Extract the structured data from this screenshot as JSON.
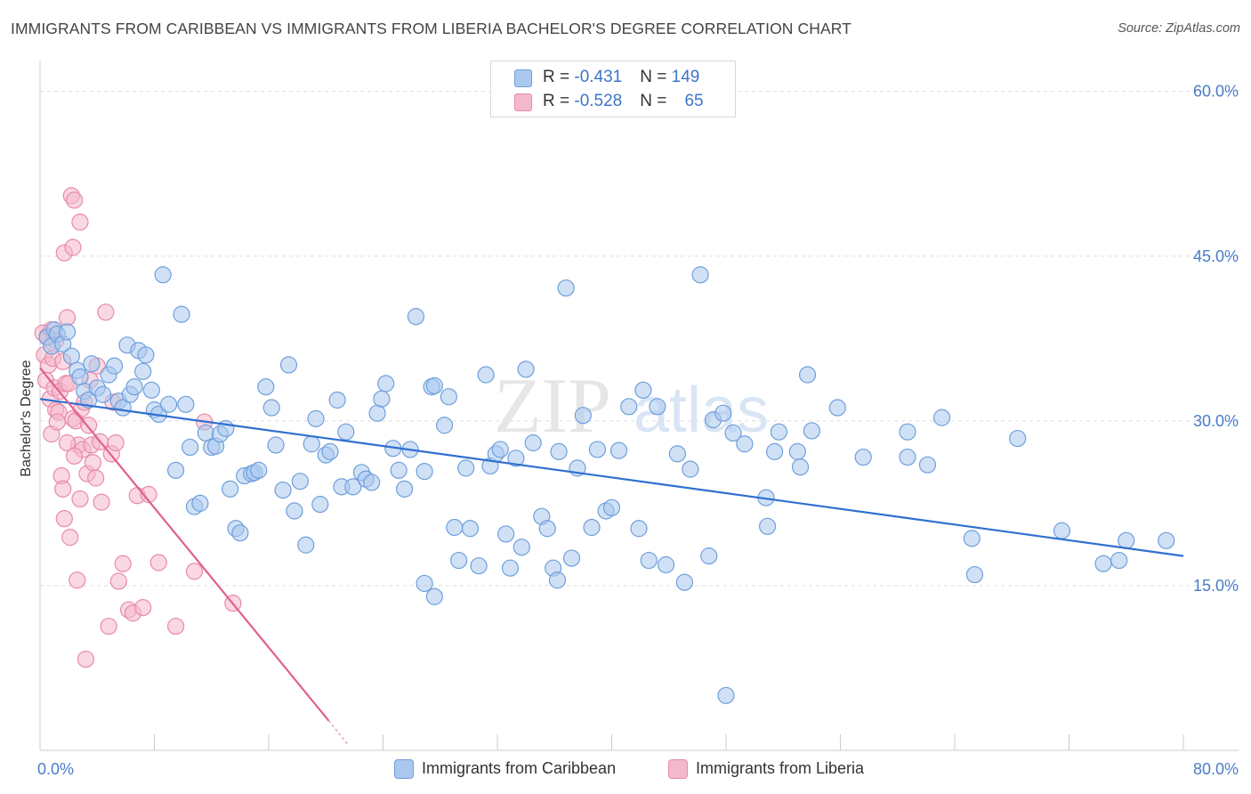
{
  "title": "IMMIGRANTS FROM CARIBBEAN VS IMMIGRANTS FROM LIBERIA BACHELOR'S DEGREE CORRELATION CHART",
  "source": "Source: ZipAtlas.com",
  "watermark": {
    "zip": "ZIP",
    "atlas": "atlas"
  },
  "colors": {
    "blue_fill": "#aac8ee",
    "blue_stroke": "#6f9fdc",
    "blue_line": "#2f6fd0",
    "pink_fill": "#f4b8cc",
    "pink_stroke": "#e88aa8",
    "pink_line": "#e0608f",
    "grid": "#dddddd",
    "tick_label": "#4a7cc9"
  },
  "legend_top": [
    {
      "r_label": "R = ",
      "r_value": "-0.431",
      "n_label": "N = ",
      "n_value": "149"
    },
    {
      "r_label": "R = ",
      "r_value": "-0.528",
      "n_label": "N = ",
      "n_value": "65"
    }
  ],
  "chart_data": {
    "type": "scatter",
    "xlabel": "",
    "ylabel": "Bachelor's Degree",
    "xlim": [
      0,
      80
    ],
    "ylim": [
      0,
      62
    ],
    "x_tick_labels": [
      "0.0%",
      "80.0%"
    ],
    "y_ticks": [
      15,
      30,
      45,
      60
    ],
    "y_tick_labels": [
      "15.0%",
      "30.0%",
      "45.0%",
      "60.0%"
    ],
    "grid": true,
    "legend_position": "bottom",
    "series": [
      {
        "name": "Immigrants from Caribbean",
        "color": "#aac8ee",
        "trend": {
          "x0": 0,
          "y0": 32.0,
          "x1": 80,
          "y1": 17.7
        },
        "points": [
          [
            0.5,
            37.6
          ],
          [
            0.8,
            36.8
          ],
          [
            1.0,
            38.3
          ],
          [
            1.2,
            37.9
          ],
          [
            1.6,
            37.0
          ],
          [
            1.9,
            38.1
          ],
          [
            2.2,
            35.9
          ],
          [
            2.6,
            34.6
          ],
          [
            2.8,
            34.0
          ],
          [
            3.1,
            32.7
          ],
          [
            3.4,
            31.9
          ],
          [
            3.6,
            35.2
          ],
          [
            4.0,
            33.0
          ],
          [
            4.4,
            32.4
          ],
          [
            4.8,
            34.2
          ],
          [
            5.2,
            35.0
          ],
          [
            5.5,
            31.8
          ],
          [
            5.8,
            31.2
          ],
          [
            6.1,
            36.9
          ],
          [
            6.3,
            32.4
          ],
          [
            6.6,
            33.1
          ],
          [
            6.9,
            36.4
          ],
          [
            7.2,
            34.5
          ],
          [
            7.4,
            36.0
          ],
          [
            7.8,
            32.8
          ],
          [
            8.0,
            31.0
          ],
          [
            8.3,
            30.6
          ],
          [
            8.6,
            43.3
          ],
          [
            9.0,
            31.5
          ],
          [
            9.5,
            25.5
          ],
          [
            9.9,
            39.7
          ],
          [
            10.2,
            31.5
          ],
          [
            10.5,
            27.6
          ],
          [
            10.8,
            22.2
          ],
          [
            11.2,
            22.5
          ],
          [
            11.6,
            28.9
          ],
          [
            12.0,
            27.6
          ],
          [
            12.3,
            27.7
          ],
          [
            12.6,
            28.8
          ],
          [
            13.0,
            29.3
          ],
          [
            13.3,
            23.8
          ],
          [
            13.7,
            20.2
          ],
          [
            14.0,
            19.8
          ],
          [
            14.3,
            25.0
          ],
          [
            14.8,
            25.2
          ],
          [
            15.0,
            25.3
          ],
          [
            15.3,
            25.5
          ],
          [
            15.8,
            33.1
          ],
          [
            16.2,
            31.2
          ],
          [
            16.5,
            27.8
          ],
          [
            17.0,
            23.7
          ],
          [
            17.4,
            35.1
          ],
          [
            17.8,
            21.8
          ],
          [
            18.2,
            24.5
          ],
          [
            18.6,
            18.7
          ],
          [
            19.0,
            27.9
          ],
          [
            19.3,
            30.2
          ],
          [
            19.6,
            22.4
          ],
          [
            20.0,
            26.9
          ],
          [
            20.3,
            27.2
          ],
          [
            20.8,
            31.9
          ],
          [
            21.1,
            24.0
          ],
          [
            21.4,
            29.0
          ],
          [
            21.9,
            24.0
          ],
          [
            22.5,
            25.3
          ],
          [
            22.8,
            24.7
          ],
          [
            23.2,
            24.4
          ],
          [
            23.6,
            30.7
          ],
          [
            23.9,
            32.0
          ],
          [
            24.2,
            33.4
          ],
          [
            24.7,
            27.5
          ],
          [
            25.1,
            25.5
          ],
          [
            25.5,
            23.8
          ],
          [
            25.9,
            27.4
          ],
          [
            26.3,
            39.5
          ],
          [
            26.9,
            25.4
          ],
          [
            27.4,
            33.1
          ],
          [
            27.6,
            33.2
          ],
          [
            28.3,
            29.6
          ],
          [
            28.6,
            32.2
          ],
          [
            29.0,
            20.3
          ],
          [
            29.3,
            17.3
          ],
          [
            29.8,
            25.7
          ],
          [
            30.1,
            20.2
          ],
          [
            30.7,
            16.8
          ],
          [
            31.2,
            34.2
          ],
          [
            31.5,
            25.9
          ],
          [
            31.9,
            27.0
          ],
          [
            32.2,
            27.4
          ],
          [
            32.6,
            19.7
          ],
          [
            32.9,
            16.6
          ],
          [
            33.3,
            26.6
          ],
          [
            33.7,
            18.5
          ],
          [
            34.0,
            34.7
          ],
          [
            34.5,
            28.0
          ],
          [
            35.1,
            21.3
          ],
          [
            35.5,
            20.2
          ],
          [
            35.9,
            16.6
          ],
          [
            36.3,
            27.2
          ],
          [
            36.8,
            42.1
          ],
          [
            37.2,
            17.5
          ],
          [
            37.6,
            25.7
          ],
          [
            38.0,
            30.5
          ],
          [
            38.6,
            20.3
          ],
          [
            39.0,
            27.4
          ],
          [
            39.6,
            21.8
          ],
          [
            40.0,
            22.1
          ],
          [
            40.5,
            27.3
          ],
          [
            41.2,
            31.3
          ],
          [
            41.9,
            20.2
          ],
          [
            42.2,
            32.8
          ],
          [
            42.6,
            17.3
          ],
          [
            43.2,
            31.3
          ],
          [
            43.8,
            16.9
          ],
          [
            44.6,
            27.0
          ],
          [
            45.1,
            15.3
          ],
          [
            45.5,
            25.6
          ],
          [
            46.2,
            43.3
          ],
          [
            46.8,
            17.7
          ],
          [
            47.1,
            30.1
          ],
          [
            47.8,
            30.7
          ],
          [
            48.5,
            28.9
          ],
          [
            49.3,
            27.9
          ],
          [
            50.8,
            23.0
          ],
          [
            50.9,
            20.4
          ],
          [
            51.4,
            27.2
          ],
          [
            51.7,
            29.0
          ],
          [
            53.0,
            27.2
          ],
          [
            53.2,
            25.8
          ],
          [
            53.7,
            34.2
          ],
          [
            54.0,
            29.1
          ],
          [
            55.8,
            31.2
          ],
          [
            57.6,
            26.7
          ],
          [
            60.7,
            26.7
          ],
          [
            60.7,
            29.0
          ],
          [
            62.1,
            26.0
          ],
          [
            63.1,
            30.3
          ],
          [
            65.2,
            19.3
          ],
          [
            65.4,
            16.0
          ],
          [
            68.4,
            28.4
          ],
          [
            71.5,
            20.0
          ],
          [
            74.4,
            17.0
          ],
          [
            75.5,
            17.3
          ],
          [
            76.0,
            19.1
          ],
          [
            78.8,
            19.1
          ],
          [
            48.0,
            5.0
          ],
          [
            36.2,
            15.5
          ],
          [
            26.9,
            15.2
          ],
          [
            27.6,
            14.0
          ]
        ]
      },
      {
        "name": "Immigrants from Liberia",
        "color": "#f4b8cc",
        "trend": {
          "x0": 0,
          "y0": 34.8,
          "x1": 20.2,
          "y1": 2.7,
          "dash_x1": 21.5,
          "dash_y1": 0.6
        },
        "points": [
          [
            0.2,
            38.0
          ],
          [
            0.3,
            36.0
          ],
          [
            0.4,
            33.7
          ],
          [
            0.5,
            37.7
          ],
          [
            0.6,
            35.1
          ],
          [
            0.7,
            32.0
          ],
          [
            0.8,
            38.3
          ],
          [
            0.9,
            35.7
          ],
          [
            1.0,
            33.0
          ],
          [
            1.1,
            31.0
          ],
          [
            1.3,
            30.8
          ],
          [
            1.4,
            32.7
          ],
          [
            1.5,
            25.0
          ],
          [
            1.6,
            23.8
          ],
          [
            1.7,
            21.1
          ],
          [
            1.8,
            33.4
          ],
          [
            1.9,
            39.4
          ],
          [
            2.0,
            33.4
          ],
          [
            2.1,
            19.4
          ],
          [
            2.2,
            50.5
          ],
          [
            2.3,
            30.2
          ],
          [
            2.4,
            50.1
          ],
          [
            2.5,
            30.0
          ],
          [
            2.6,
            15.5
          ],
          [
            2.7,
            27.8
          ],
          [
            2.8,
            22.9
          ],
          [
            2.9,
            31.1
          ],
          [
            3.0,
            27.4
          ],
          [
            3.1,
            31.7
          ],
          [
            3.2,
            8.3
          ],
          [
            3.3,
            25.2
          ],
          [
            3.4,
            29.6
          ],
          [
            3.5,
            33.7
          ],
          [
            3.6,
            27.8
          ],
          [
            3.7,
            26.2
          ],
          [
            3.9,
            24.8
          ],
          [
            4.0,
            35.0
          ],
          [
            4.2,
            28.1
          ],
          [
            4.3,
            22.6
          ],
          [
            4.6,
            39.9
          ],
          [
            4.8,
            11.3
          ],
          [
            5.0,
            27.0
          ],
          [
            5.1,
            31.7
          ],
          [
            5.3,
            28.0
          ],
          [
            5.5,
            15.4
          ],
          [
            5.8,
            17.0
          ],
          [
            6.2,
            12.8
          ],
          [
            6.5,
            12.5
          ],
          [
            6.8,
            23.2
          ],
          [
            7.2,
            13.0
          ],
          [
            7.6,
            23.3
          ],
          [
            8.3,
            17.1
          ],
          [
            9.5,
            11.3
          ],
          [
            10.8,
            16.3
          ],
          [
            11.5,
            29.9
          ],
          [
            13.5,
            13.4
          ],
          [
            1.7,
            45.3
          ],
          [
            2.3,
            45.8
          ],
          [
            2.8,
            48.1
          ],
          [
            1.1,
            37.3
          ],
          [
            1.6,
            35.4
          ],
          [
            0.8,
            28.8
          ],
          [
            1.2,
            29.9
          ],
          [
            1.9,
            28.0
          ],
          [
            2.4,
            26.8
          ]
        ]
      }
    ]
  }
}
